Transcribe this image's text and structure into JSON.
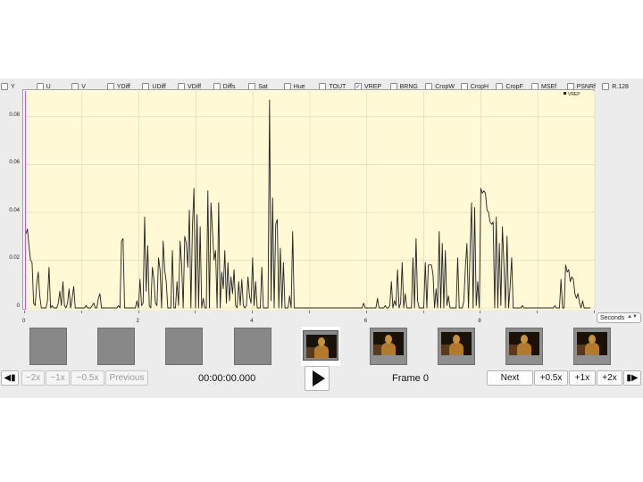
{
  "filters": [
    {
      "label": "Y",
      "checked": false
    },
    {
      "label": "U",
      "checked": false
    },
    {
      "label": "V",
      "checked": false
    },
    {
      "label": "YDiff",
      "checked": false
    },
    {
      "label": "UDiff",
      "checked": false
    },
    {
      "label": "VDiff",
      "checked": false
    },
    {
      "label": "Diffs",
      "checked": false
    },
    {
      "label": "Sat",
      "checked": false
    },
    {
      "label": "Hue",
      "checked": false
    },
    {
      "label": "TOUT",
      "checked": false
    },
    {
      "label": "VREP",
      "checked": true
    },
    {
      "label": "BRNG",
      "checked": false
    },
    {
      "label": "CropW",
      "checked": false
    },
    {
      "label": "CropH",
      "checked": false
    },
    {
      "label": "CropF",
      "checked": false
    },
    {
      "label": "MSEf",
      "checked": false
    },
    {
      "label": "PSNRf",
      "checked": false
    },
    {
      "label": "R.128",
      "checked": false
    }
  ],
  "chart_data": {
    "type": "line",
    "xlim": [
      0,
      10
    ],
    "ylim": [
      0,
      0.09
    ],
    "yticks": [
      "0",
      "0.02",
      "0.04",
      "0.06",
      "0.08"
    ],
    "xticks": [
      "0",
      "2",
      "4",
      "6",
      "8"
    ],
    "legend": {
      "text": "VREP",
      "placement": "top-right"
    },
    "series": [
      {
        "name": "VREP",
        "color": "#222222",
        "y": [
          0.031,
          0.033,
          0.026,
          0.02,
          0.019,
          0.002,
          0.001,
          0.01,
          0.015,
          0.005,
          0.0,
          0.0,
          0.0,
          0.0,
          0.003,
          0.017,
          0.0,
          0.001,
          0.0,
          0.0,
          0.0,
          0.002,
          0.007,
          0.001,
          0.011,
          0.001,
          0.0,
          0.002,
          0.008,
          0.0,
          0.004,
          0.009,
          0.0,
          0.0,
          0.0,
          0.0,
          0.0,
          0.0,
          0.0,
          0.001,
          0.0,
          0.0,
          0.0,
          0.001,
          0.002,
          0.0,
          0.0,
          0.004,
          0.006,
          0.0,
          0.0,
          0.0,
          0.0,
          0.0,
          0.0,
          0.0,
          0.0,
          0.0,
          0.0,
          0.0,
          0.001,
          0.0,
          0.028,
          0.029,
          0.0,
          0.0,
          0.0,
          0.0,
          0.0,
          0.0,
          0.0,
          0.0,
          0.003,
          0.0,
          0.012,
          0.001,
          0.002,
          0.038,
          0.007,
          0.026,
          0.001,
          0.0,
          0.017,
          0.012,
          0.002,
          0.001,
          0.021,
          0.016,
          0.0,
          0.028,
          0.016,
          0.011,
          0.0,
          0.0,
          0.0,
          0.024,
          0.0,
          0.0,
          0.011,
          0.001,
          0.028,
          0.018,
          0.0,
          0.03,
          0.027,
          0.017,
          0.041,
          0.0,
          0.034,
          0.05,
          0.0,
          0.039,
          0.0,
          0.034,
          0.0,
          0.004,
          0.0,
          0.0,
          0.049,
          0.0,
          0.044,
          0.032,
          0.02,
          0.024,
          0.0,
          0.044,
          0.0,
          0.015,
          0.008,
          0.024,
          0.002,
          0.019,
          0.003,
          0.013,
          0.006,
          0.016,
          0.001,
          0.0,
          0.011,
          0.001,
          0.012,
          0.001,
          0.0,
          0.001,
          0.013,
          0.005,
          0.002,
          0.021,
          0.001,
          0.011,
          0.0,
          0.0,
          0.0,
          0.017,
          0.0,
          0.0,
          0.0,
          0.0,
          0.087,
          0.003,
          0.046,
          0.0,
          0.035,
          0.037,
          0.0,
          0.025,
          0.0,
          0.019,
          0.0,
          0.0,
          0.0,
          0.005,
          0.0,
          0.032,
          0.0,
          0.0,
          0.0,
          0.0,
          0.0,
          0.0,
          0.0,
          0.0,
          0.0,
          0.0,
          0.0,
          0.0,
          0.0,
          0.0,
          0.0,
          0.0,
          0.0,
          0.0,
          0.0,
          0.0,
          0.0,
          0.0,
          0.0,
          0.0,
          0.0,
          0.0,
          0.0,
          0.0,
          0.0,
          0.0,
          0.0,
          0.0,
          0.0,
          0.0,
          0.0,
          0.0,
          0.0,
          0.0,
          0.0,
          0.0,
          0.0,
          0.0,
          0.0,
          0.0,
          0.0,
          0.002,
          0.0,
          0.0,
          0.0,
          0.0,
          0.0,
          0.0,
          0.0,
          0.0,
          0.004,
          0.0,
          0.0,
          0.0,
          0.0,
          0.001,
          0.0,
          0.0,
          0.001,
          0.011,
          0.0,
          0.003,
          0.001,
          0.016,
          0.0,
          0.002,
          0.019,
          0.0,
          0.006,
          0.0,
          0.0,
          0.0,
          0.0,
          0.021,
          0.0,
          0.029,
          0.003,
          0.0,
          0.0,
          0.0,
          0.0,
          0.019,
          0.0,
          0.018,
          0.018,
          0.018,
          0.014,
          0.0,
          0.008,
          0.0,
          0.032,
          0.0,
          0.027,
          0.0,
          0.024,
          0.001,
          0.005,
          0.0,
          0.0,
          0.0,
          0.0,
          0.0,
          0.021,
          0.0,
          0.0,
          0.0,
          0.003,
          0.017,
          0.027,
          0.0,
          0.023,
          0.044,
          0.0,
          0.042,
          0.001,
          0.011,
          0.0,
          0.05,
          0.048,
          0.049,
          0.048,
          0.041,
          0.04,
          0.036,
          0.035,
          0.036,
          0.0,
          0.038,
          0.0,
          0.027,
          0.001,
          0.034,
          0.018,
          0.0,
          0.03,
          0.0,
          0.009,
          0.021,
          0.0,
          0.0,
          0.0,
          0.0,
          0.0,
          0.0,
          0.001,
          0.0,
          0.0,
          0.0,
          0.0,
          0.0,
          0.0,
          0.0,
          0.0,
          0.0,
          0.0,
          0.0,
          0.0,
          0.0,
          0.0,
          0.0,
          0.0,
          0.0,
          0.0,
          0.0,
          0.0,
          0.001,
          0.0,
          0.0,
          0.0,
          0.012,
          0.0,
          0.0,
          0.018,
          0.015,
          0.016,
          0.011,
          0.013,
          0.012,
          0.006,
          0.004,
          0.006,
          0.002,
          0.0,
          0.003,
          0.0,
          0.0,
          0.0,
          0.0,
          0.0
        ]
      }
    ]
  },
  "units_select": {
    "value": "Seconds"
  },
  "thumbnails": [
    {
      "kind": "gray"
    },
    {
      "kind": "gray"
    },
    {
      "kind": "gray"
    },
    {
      "kind": "gray"
    },
    {
      "kind": "current"
    },
    {
      "kind": "frame"
    },
    {
      "kind": "frame"
    },
    {
      "kind": "frame"
    },
    {
      "kind": "frame"
    }
  ],
  "nav": {
    "left_edge_icon": "skip-to-start-icon",
    "left_edge": "◀▮",
    "minus2x": "−2x",
    "minus1x": "−1x",
    "minus05x": "−0.5x",
    "previous": "Previous",
    "timecode": "00:00:00.000",
    "play_icon": "play-icon",
    "frame": "Frame 0",
    "next": "Next",
    "plus05x": "+0.5x",
    "plus1x": "+1x",
    "plus2x": "+2x",
    "right_edge_icon": "skip-to-end-icon",
    "right_edge": "▮▶"
  },
  "colors": {
    "plot_background": "#fff9d6",
    "line": "#222222",
    "grid": "#d8d3b5",
    "marker": "#c060c8"
  }
}
